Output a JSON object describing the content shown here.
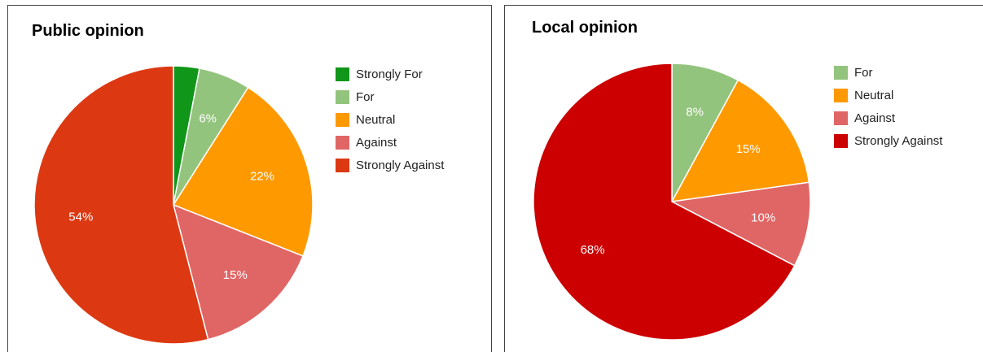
{
  "chart_data": [
    {
      "type": "pie",
      "title": "Public opinion",
      "categories": [
        "Strongly For",
        "For",
        "Neutral",
        "Against",
        "Strongly Against"
      ],
      "values": [
        3,
        6,
        22,
        15,
        54
      ],
      "data_labels": [
        "",
        "6%",
        "22%",
        "15%",
        "54%"
      ],
      "colors": [
        "#109618",
        "#93c47d",
        "#ff9900",
        "#e06666",
        "#dc3912"
      ],
      "legend_position": "right"
    },
    {
      "type": "pie",
      "title": "Local opinion",
      "categories": [
        "For",
        "Neutral",
        "Against",
        "Strongly Against"
      ],
      "values": [
        8,
        15,
        10,
        68
      ],
      "data_labels": [
        "8%",
        "15%",
        "10%",
        "68%"
      ],
      "colors": [
        "#93c47d",
        "#ff9900",
        "#e06666",
        "#cc0000"
      ],
      "legend_position": "right"
    }
  ]
}
